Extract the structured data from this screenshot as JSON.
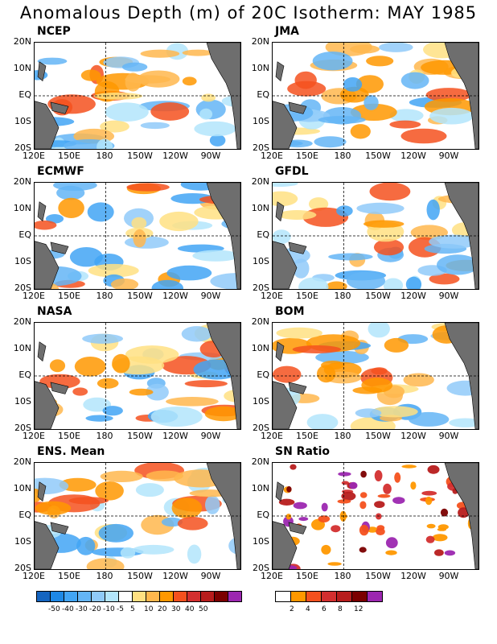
{
  "title": "Anomalous Depth (m) of 20C Isotherm: MAY 1985",
  "lat_labels": [
    "20N",
    "10N",
    "EQ",
    "10S",
    "20S"
  ],
  "lon_labels": [
    "120E",
    "150E",
    "180",
    "150W",
    "120W",
    "90W"
  ],
  "panels": [
    {
      "name": "NCEP"
    },
    {
      "name": "JMA"
    },
    {
      "name": "ECMWF"
    },
    {
      "name": "GFDL"
    },
    {
      "name": "NASA"
    },
    {
      "name": "BOM"
    },
    {
      "name": "ENS. Mean"
    },
    {
      "name": "SN Ratio"
    }
  ],
  "colorbar_anomaly": {
    "colors": [
      "#1565c0",
      "#1e88e5",
      "#42a5f5",
      "#64b5f6",
      "#90caf9",
      "#b3e5fc",
      "#ffffff",
      "#ffe082",
      "#ffb74d",
      "#ff9800",
      "#f4511e",
      "#d32f2f",
      "#b71c1c",
      "#7b0000",
      "#9c27b0"
    ],
    "labels": [
      "-50",
      "-40",
      "-30",
      "-20",
      "-10",
      "-5",
      "5",
      "10",
      "20",
      "30",
      "40",
      "50"
    ]
  },
  "colorbar_snr": {
    "colors": [
      "#ffffff",
      "#ff9800",
      "#f4511e",
      "#d32f2f",
      "#b71c1c",
      "#7b0000",
      "#9c27b0"
    ],
    "labels": [
      "2",
      "4",
      "6",
      "8",
      "12"
    ]
  },
  "colors": {
    "land": "#6e6e6e"
  }
}
